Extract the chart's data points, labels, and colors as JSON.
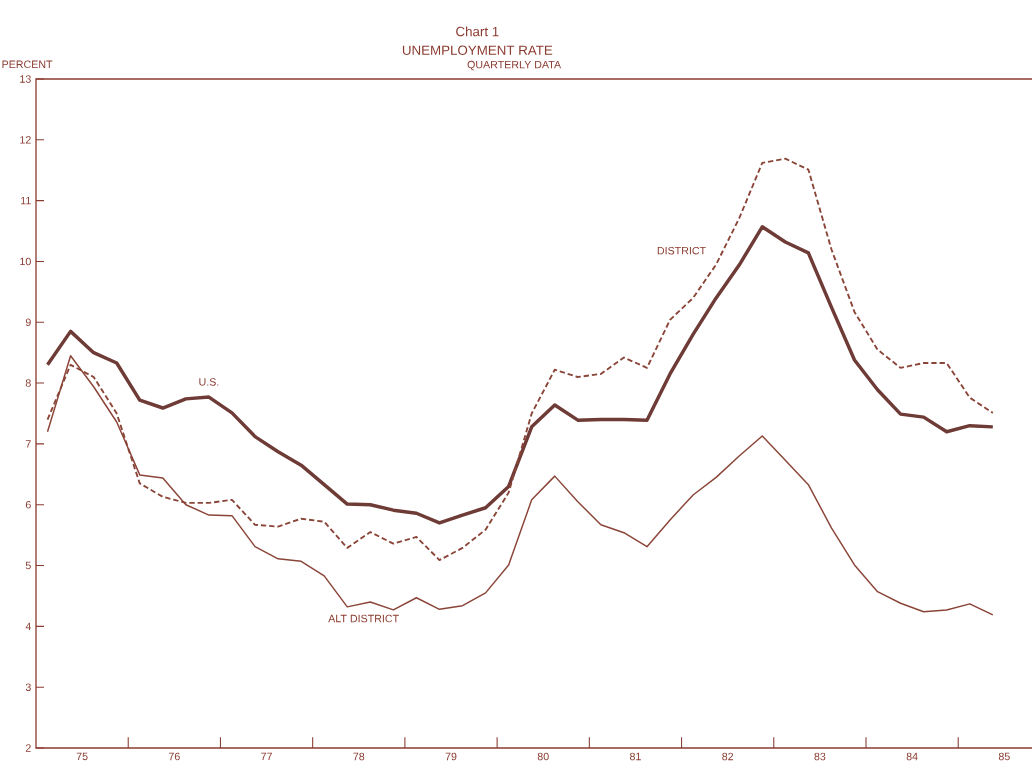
{
  "chart_data": {
    "type": "line",
    "title": "Chart 1",
    "subtitle": "UNEMPLOYMENT RATE",
    "ylabel": "PERCENT",
    "annotations": [
      "QUARTERLY DATA"
    ],
    "x": [
      74.625,
      74.875,
      75.125,
      75.375,
      75.625,
      75.875,
      76.125,
      76.375,
      76.625,
      76.875,
      77.125,
      77.375,
      77.625,
      77.875,
      78.125,
      78.375,
      78.625,
      78.875,
      79.125,
      79.375,
      79.625,
      79.875,
      80.125,
      80.375,
      80.625,
      80.875,
      81.125,
      81.375,
      81.625,
      81.875,
      82.125,
      82.375,
      82.625,
      82.875,
      83.125,
      83.375,
      83.625,
      83.875,
      84.125,
      84.375,
      84.625,
      84.875
    ],
    "series": [
      {
        "name": "U.S.",
        "color": "#6e3b36",
        "line_style": "solid",
        "values": [
          8.3,
          8.85,
          8.5,
          8.33,
          7.72,
          7.59,
          7.74,
          7.77,
          7.51,
          7.12,
          6.87,
          6.65,
          6.33,
          6.01,
          6.0,
          5.91,
          5.86,
          5.7,
          5.83,
          5.95,
          6.3,
          7.28,
          7.64,
          7.39,
          7.4,
          7.4,
          7.39,
          8.15,
          8.8,
          9.4,
          9.94,
          10.57,
          10.32,
          10.14,
          9.25,
          8.38,
          7.89,
          7.49,
          7.44,
          7.2,
          7.3,
          7.28
        ]
      },
      {
        "name": "DISTRICT",
        "color": "#8a4538",
        "line_style": "dashed",
        "values": [
          7.4,
          8.3,
          8.1,
          7.5,
          6.35,
          6.13,
          6.03,
          6.03,
          6.08,
          5.67,
          5.64,
          5.77,
          5.72,
          5.29,
          5.55,
          5.36,
          5.47,
          5.09,
          5.29,
          5.59,
          6.2,
          7.5,
          8.22,
          8.1,
          8.15,
          8.42,
          8.25,
          9.04,
          9.4,
          9.95,
          10.71,
          11.62,
          11.69,
          11.51,
          10.2,
          9.17,
          8.55,
          8.25,
          8.33,
          8.33,
          7.76,
          7.51
        ]
      },
      {
        "name": "ALT DISTRICT",
        "color": "#8a4538",
        "line_style": "solid",
        "values": [
          7.2,
          8.45,
          7.94,
          7.36,
          6.49,
          6.44,
          6.0,
          5.83,
          5.82,
          5.31,
          5.11,
          5.07,
          4.83,
          4.32,
          4.4,
          4.27,
          4.47,
          4.28,
          4.34,
          4.55,
          5.01,
          6.08,
          6.47,
          6.05,
          5.67,
          5.54,
          5.31,
          5.75,
          6.16,
          6.45,
          6.8,
          7.13,
          6.73,
          6.33,
          5.62,
          5.01,
          4.57,
          4.38,
          4.24,
          4.27,
          4.37,
          4.19
        ]
      }
    ],
    "xlim": [
      74.5,
      85.3
    ],
    "xticks": [
      75,
      {
        "value": 75.5,
        "label": null
      },
      76,
      {
        "value": 76.5,
        "label": null
      },
      77,
      {
        "value": 77.5,
        "label": null
      },
      78,
      {
        "value": 78.5,
        "label": null
      },
      79,
      {
        "value": 79.5,
        "label": null
      },
      80,
      {
        "value": 80.5,
        "label": null
      },
      81,
      {
        "value": 81.5,
        "label": null
      },
      82,
      {
        "value": 82.5,
        "label": null
      },
      83,
      {
        "value": 83.5,
        "label": null
      },
      84,
      {
        "value": 84.5,
        "label": null
      },
      85
    ],
    "ylim": [
      2,
      13
    ],
    "yticks": [
      2,
      3,
      4,
      5,
      6,
      7,
      8,
      9,
      10,
      11,
      12,
      13
    ],
    "grid": false,
    "marker": "none"
  }
}
